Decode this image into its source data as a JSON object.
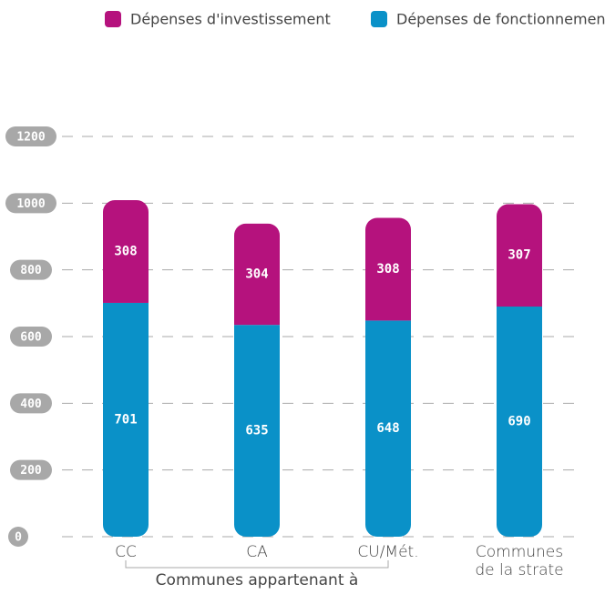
{
  "chart_data": {
    "type": "stacked_bar",
    "categories": [
      "CC",
      "CA",
      "CU/Mét.",
      "Communes de la strate"
    ],
    "series": [
      {
        "name": "Dépenses d'investissement",
        "color": "#b5127d",
        "values": [
          308,
          304,
          308,
          307
        ]
      },
      {
        "name": "Dépenses de fonctionnement",
        "color": "#0a91c8",
        "values": [
          701,
          635,
          648,
          690
        ]
      }
    ],
    "group_label": "Communes appartenant à",
    "ylim": [
      0,
      1200
    ],
    "yticks": [
      0,
      200,
      400,
      600,
      800,
      1000,
      1200
    ],
    "grid": true
  }
}
